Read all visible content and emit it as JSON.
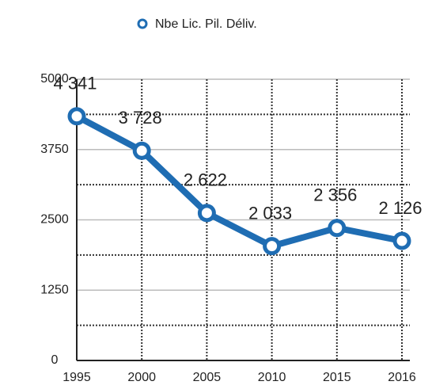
{
  "chart_data": {
    "type": "line",
    "categories": [
      "1995",
      "2000",
      "2005",
      "2010",
      "2015",
      "2016"
    ],
    "series": [
      {
        "name": "Nbe Lic. Pil. Déliv.",
        "color": "#1f6db3",
        "values": [
          4341,
          3728,
          2622,
          2033,
          2356,
          2126
        ],
        "value_labels": [
          "4 341",
          "3 728",
          "2 622",
          "2 033",
          "2 356",
          "2 126"
        ]
      }
    ],
    "ylim": [
      0,
      5000
    ],
    "yticks": [
      0,
      1250,
      2500,
      3750,
      5000
    ],
    "minor_yticks": [
      625,
      1875,
      3125,
      4375
    ],
    "grid": true,
    "legend": "top"
  }
}
